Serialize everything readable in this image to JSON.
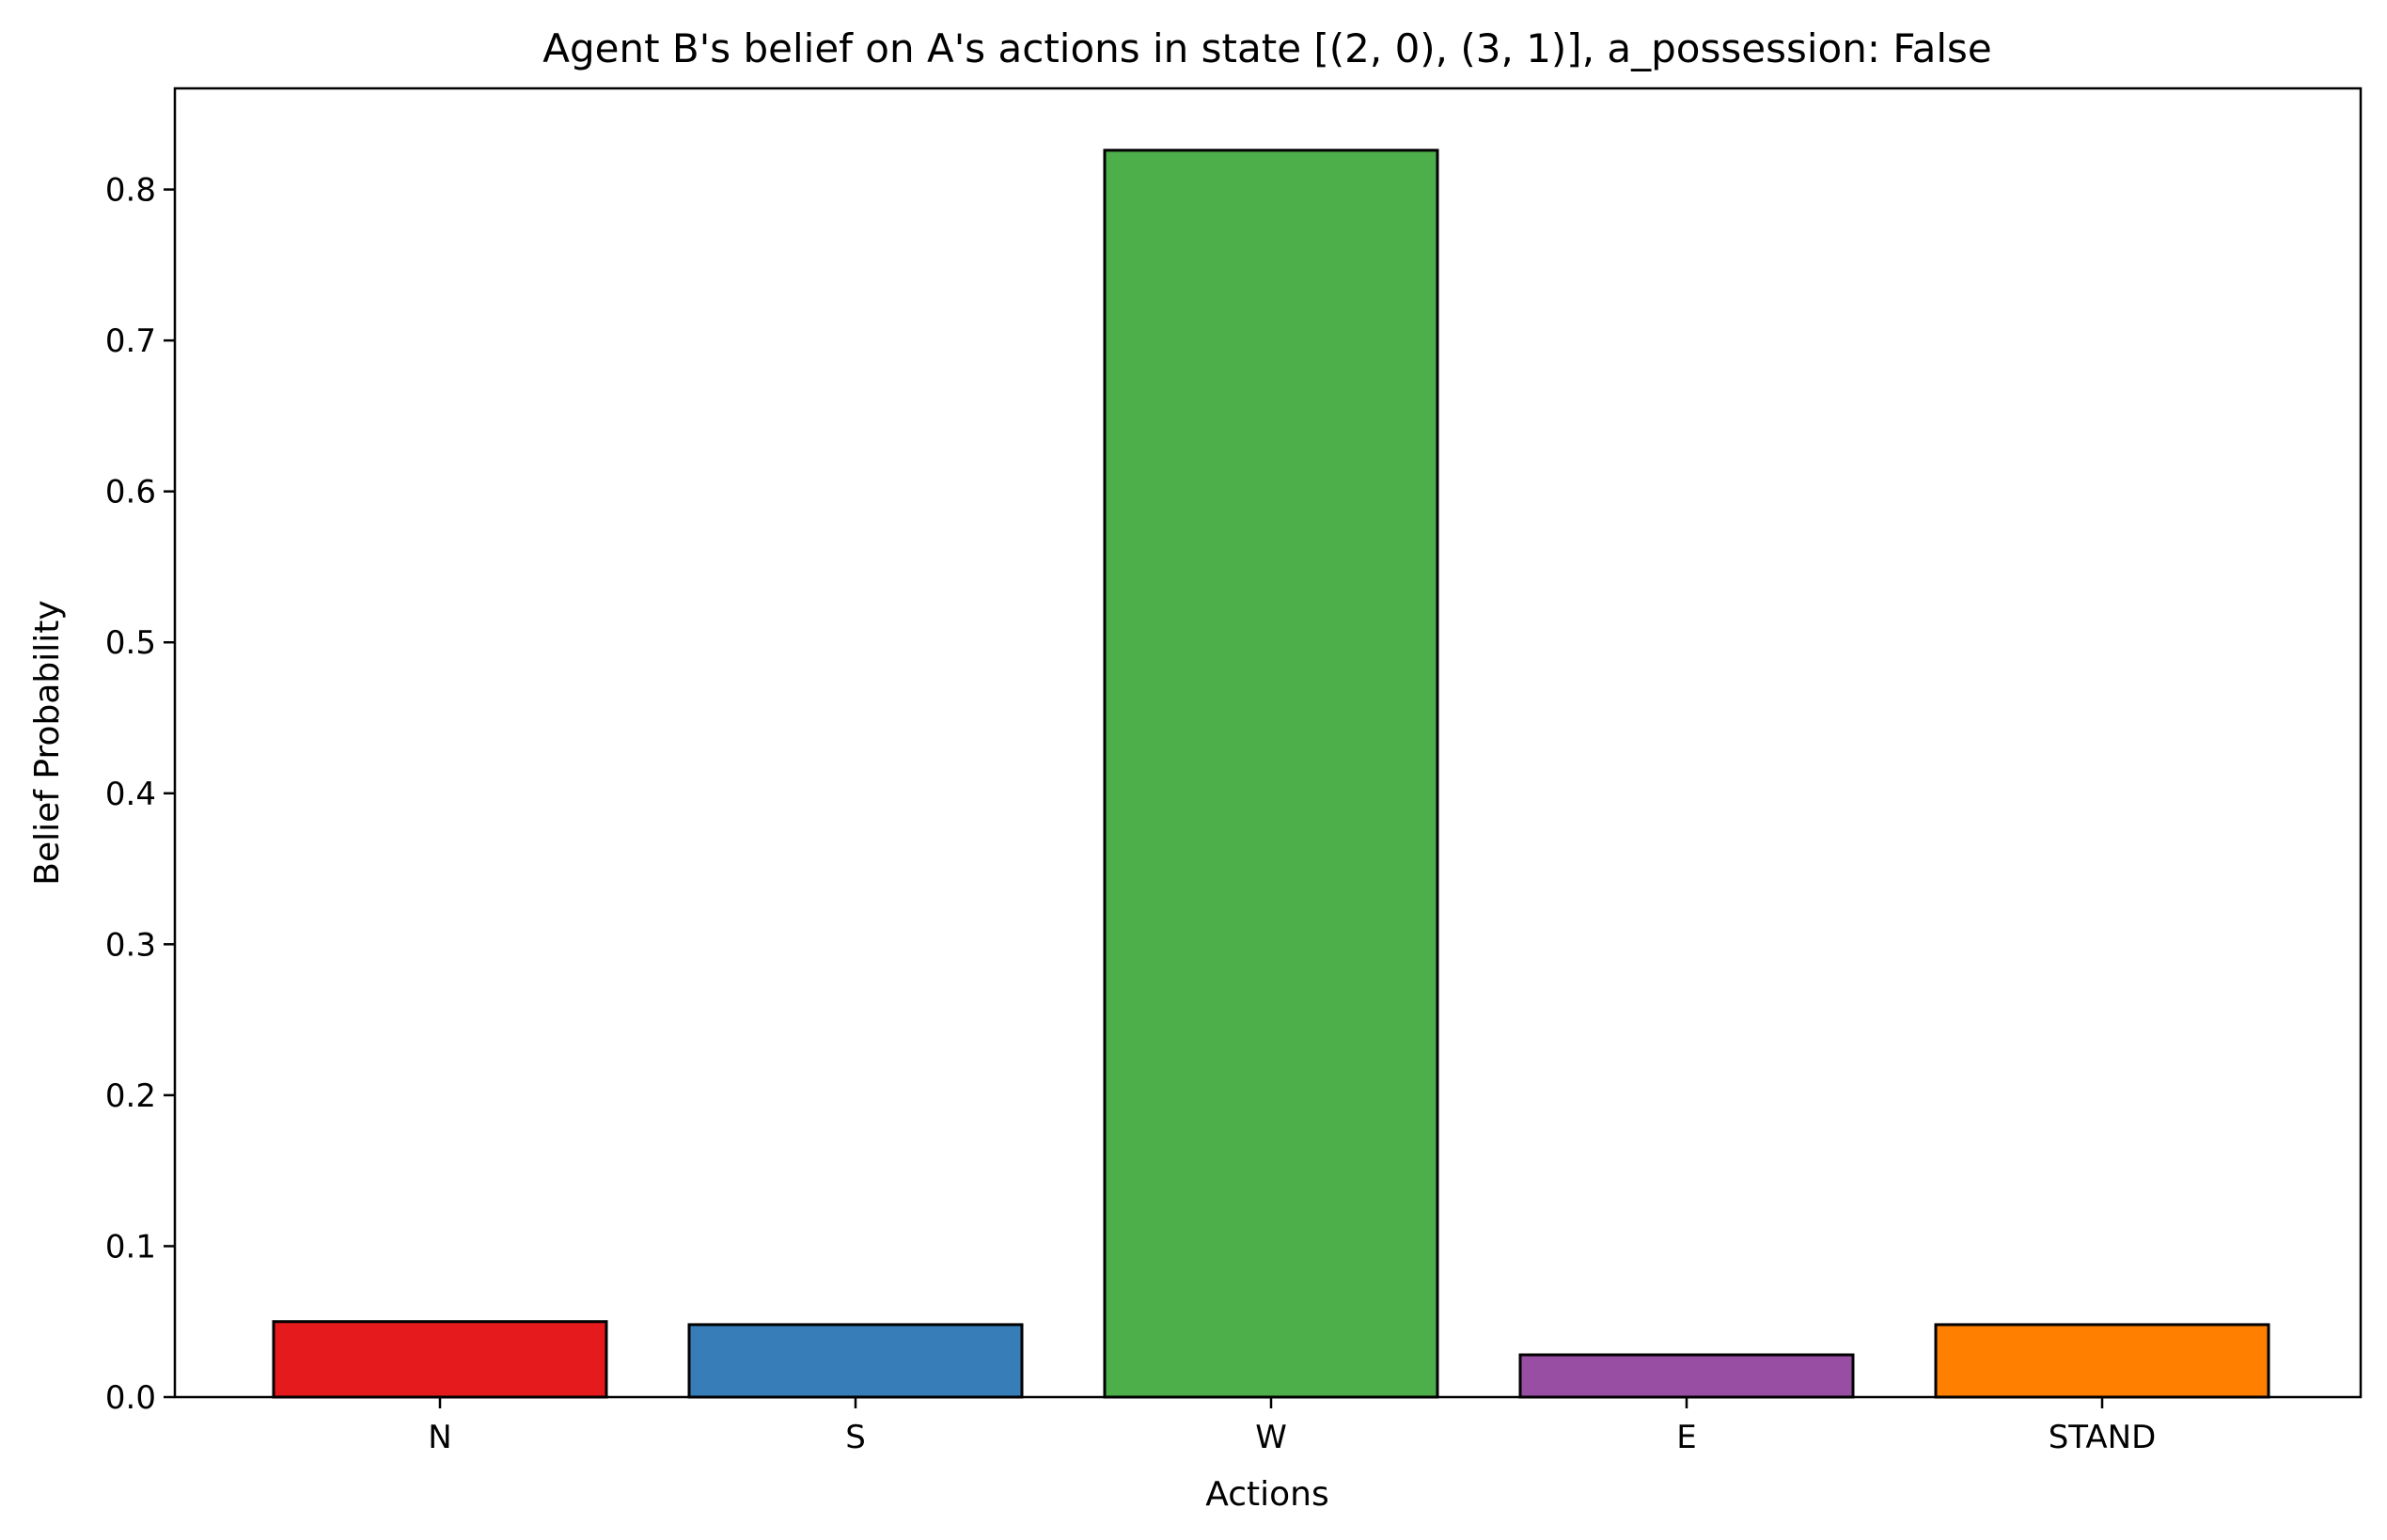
{
  "chart_data": {
    "type": "bar",
    "title": "Agent B's belief on A's actions in state [(2, 0), (3, 1)], a_possession: False",
    "xlabel": "Actions",
    "ylabel": "Belief Probability",
    "categories": [
      "N",
      "S",
      "W",
      "E",
      "STAND"
    ],
    "values": [
      0.05,
      0.048,
      0.826,
      0.028,
      0.048
    ],
    "colors": [
      "#e41a1c",
      "#377eb8",
      "#4daf4a",
      "#984ea3",
      "#ff7f00"
    ],
    "edge_color": "#000000",
    "ylim": [
      0,
      0.867
    ],
    "yticks": [
      0.0,
      0.1,
      0.2,
      0.3,
      0.4,
      0.5,
      0.6,
      0.7,
      0.8
    ],
    "ytick_labels": [
      "0.0",
      "0.1",
      "0.2",
      "0.3",
      "0.4",
      "0.5",
      "0.6",
      "0.7",
      "0.8"
    ],
    "grid": false,
    "legend": "none"
  }
}
